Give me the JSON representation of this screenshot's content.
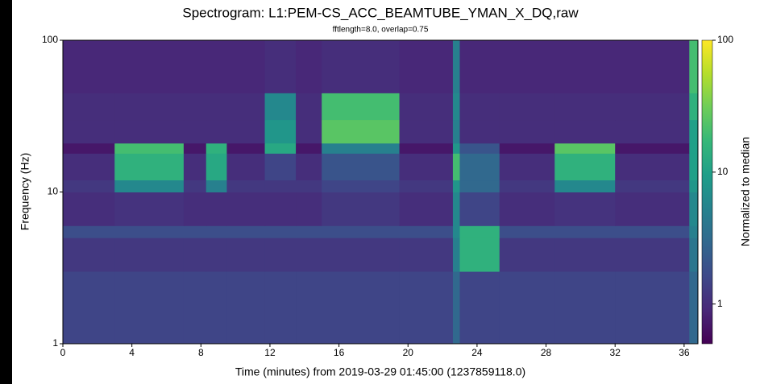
{
  "chart_data": {
    "type": "heatmap",
    "title": "Spectrogram: L1:PEM-CS_ACC_BEAMTUBE_YMAN_X_DQ,raw",
    "subtitle": "fftlength=8.0, overlap=0.75",
    "xlabel": "Time (minutes) from 2019-03-29 01:45:00 (1237859118.0)",
    "ylabel": "Frequency (Hz)",
    "colorbar_label": "Normalized to median",
    "x_edges": [
      0,
      3,
      7,
      8.3,
      9.5,
      11.7,
      13.5,
      15,
      19.5,
      22.6,
      23,
      25.3,
      28.5,
      32,
      36.3,
      36.8
    ],
    "y_edges": [
      1,
      3,
      5,
      6,
      10,
      12,
      18,
      21,
      30,
      45,
      100
    ],
    "values": [
      [
        1.5,
        1.5,
        1.5,
        1.5,
        1.5,
        1.5,
        1.5,
        1.5,
        1.5,
        3,
        1.5,
        1.5,
        1.5,
        1.5,
        3
      ],
      [
        1.2,
        1.2,
        1.2,
        1.2,
        1.2,
        1.2,
        1.2,
        1.2,
        1.2,
        5,
        15,
        1.2,
        1.2,
        1.2,
        4
      ],
      [
        1.8,
        1.8,
        1.8,
        1.8,
        1.8,
        1.8,
        1.8,
        1.8,
        1.8,
        6,
        15,
        1.8,
        1.8,
        1.8,
        5
      ],
      [
        1,
        1.1,
        1,
        1,
        1,
        1,
        1,
        1.2,
        1,
        6,
        1.5,
        1,
        1.1,
        1,
        6
      ],
      [
        1.2,
        6,
        1.2,
        5,
        1.2,
        1.2,
        1.2,
        1.5,
        1.2,
        8,
        3,
        1.2,
        6,
        1.2,
        8
      ],
      [
        1,
        15,
        1,
        12,
        1,
        1.5,
        1,
        2,
        1,
        20,
        3,
        1,
        15,
        1,
        10
      ],
      [
        0.7,
        20,
        0.7,
        15,
        0.7,
        12,
        0.7,
        5,
        0.7,
        8,
        2,
        0.7,
        25,
        0.7,
        10
      ],
      [
        1,
        1,
        1,
        1,
        1,
        8,
        1,
        25,
        1,
        5,
        1,
        1,
        1,
        1,
        10
      ],
      [
        1,
        1,
        1,
        1,
        1,
        6,
        1,
        20,
        1,
        6,
        1,
        1,
        1,
        1,
        15
      ],
      [
        0.9,
        0.9,
        0.9,
        0.9,
        0.9,
        1,
        0.9,
        1,
        0.9,
        5,
        0.9,
        0.9,
        0.9,
        0.9,
        20
      ]
    ],
    "xlim": [
      0,
      36.8
    ],
    "xticks": [
      0,
      4,
      8,
      12,
      16,
      20,
      24,
      28,
      32,
      36
    ],
    "ylim": [
      1,
      100
    ],
    "yticks": [
      1,
      10,
      100
    ],
    "yscale": "log",
    "clim": [
      0.5,
      100
    ],
    "cticks": [
      1,
      10,
      100
    ],
    "cscale": "log",
    "colormap": "viridis"
  }
}
